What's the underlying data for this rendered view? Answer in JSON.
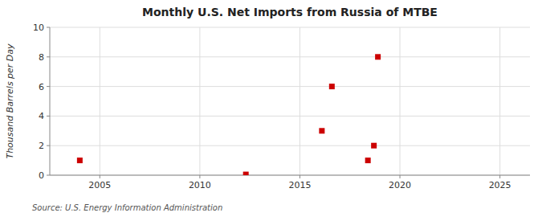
{
  "chart_data": {
    "type": "scatter",
    "title": "Monthly U.S. Net Imports from Russia of MTBE",
    "y_label": "Thousand Barrels per Day",
    "source": "Source: U.S. Energy Information Administration",
    "x": [
      2004.0,
      2012.3,
      2016.1,
      2016.6,
      2018.4,
      2018.7,
      2018.9
    ],
    "values": [
      1.0,
      0.05,
      3.0,
      6.0,
      1.0,
      2.0,
      8.0
    ],
    "color": "#cc0000",
    "marker": "square",
    "xlim": [
      2002.5,
      2026.5
    ],
    "ylim": [
      0,
      10
    ],
    "xticks": [
      2005,
      2010,
      2015,
      2020,
      2025
    ],
    "yticks": [
      0,
      2,
      4,
      6,
      8,
      10
    ],
    "grid": true
  }
}
